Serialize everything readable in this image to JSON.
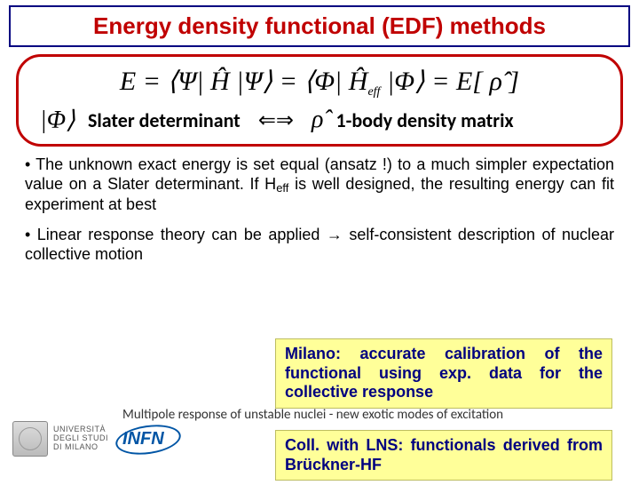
{
  "title": "Energy density functional (EDF) methods",
  "equation": {
    "main_html": "E = ⟨Ψ| Ĥ |Ψ⟩ = ⟨Φ| Ĥ<span class='eq-sub'>eff</span> |Φ⟩ = E[ ρ̂ ]",
    "ket": "|Φ⟩",
    "slater_label": "Slater determinant",
    "arrow": "⇐⇒",
    "rho": "ρ̂",
    "density_label": "1-body density matrix"
  },
  "bullets": {
    "b1_html": "• The unknown exact energy is set equal (ansatz !) to a much simpler expectation value on a Slater determinant. If H<span class='sub'>eff</span> is well designed, the resulting energy can fit experiment at best",
    "b2": "• Linear response theory can be applied → self-consistent description of nuclear collective motion"
  },
  "highlight1": "Milano: accurate calibration of the functional using exp. data for the collective response",
  "subtitle": "Multipole response of unstable nuclei - new exotic modes of excitation",
  "highlight2": "Coll. with LNS: functionals derived from Brückner-HF",
  "logos": {
    "uni_line1": "UNIVERSITÀ",
    "uni_line2": "DEGLI STUDI",
    "uni_line3": "DI MILANO",
    "infn": "INFN"
  }
}
